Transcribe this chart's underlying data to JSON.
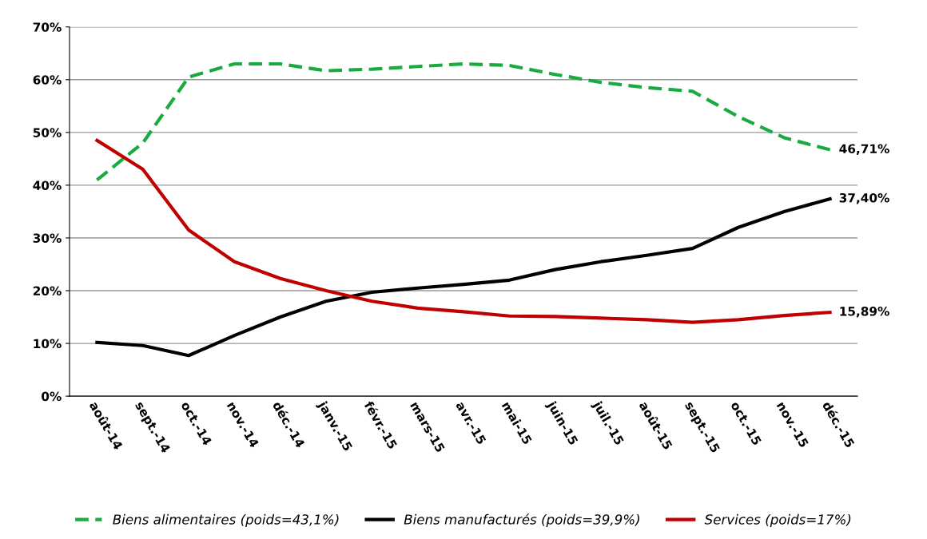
{
  "chart_data": {
    "type": "line",
    "categories": [
      "août-14",
      "sept.-14",
      "oct.-14",
      "nov.-14",
      "déc.-14",
      "janv.-15",
      "févr.-15",
      "mars-15",
      "avr.-15",
      "mai-15",
      "juin-15",
      "juil.-15",
      "août-15",
      "sept.-15",
      "oct.-15",
      "nov.-15",
      "déc.-15"
    ],
    "series": [
      {
        "name": "Biens alimentaires (poids=43,1%)",
        "color": "#1aab40",
        "line_style": "dashed",
        "values": [
          41,
          48,
          60.5,
          63,
          63,
          61.7,
          62,
          62.5,
          63,
          62.7,
          61,
          59.5,
          58.5,
          57.8,
          53,
          49,
          46.71
        ],
        "value_labels": [
          null,
          null,
          null,
          null,
          null,
          null,
          null,
          null,
          null,
          null,
          null,
          null,
          null,
          null,
          null,
          null,
          "46,71%"
        ]
      },
      {
        "name": "Biens manufacturés (poids=39,9%)",
        "color": "#000000",
        "line_style": "solid",
        "values": [
          10.2,
          9.6,
          7.7,
          11.5,
          15,
          18,
          19.7,
          20.5,
          21.2,
          22,
          24,
          25.5,
          26.7,
          28,
          32,
          35,
          37.4
        ],
        "value_labels": [
          null,
          null,
          null,
          null,
          null,
          null,
          null,
          null,
          null,
          null,
          null,
          null,
          null,
          null,
          null,
          null,
          "37,40%"
        ]
      },
      {
        "name": "Services (poids=17%)",
        "color": "#c00000",
        "line_style": "solid",
        "values": [
          48.5,
          43,
          31.5,
          25.5,
          22.3,
          20,
          18,
          16.7,
          16,
          15.2,
          15.1,
          14.8,
          14.5,
          14,
          14.5,
          15.3,
          15.89
        ],
        "value_labels": [
          null,
          null,
          null,
          null,
          null,
          null,
          null,
          null,
          null,
          null,
          null,
          null,
          null,
          null,
          null,
          null,
          "15,89%"
        ]
      }
    ],
    "ylim": [
      0,
      70
    ],
    "yticks": [
      {
        "value": 0,
        "label": "0%"
      },
      {
        "value": 10,
        "label": "10%"
      },
      {
        "value": 20,
        "label": "20%"
      },
      {
        "value": 30,
        "label": "30%"
      },
      {
        "value": 40,
        "label": "40%"
      },
      {
        "value": 50,
        "label": "50%"
      },
      {
        "value": 60,
        "label": "60%"
      },
      {
        "value": 70,
        "label": "70%"
      }
    ],
    "grid": "y",
    "legend": "bottom",
    "marker": "none"
  }
}
